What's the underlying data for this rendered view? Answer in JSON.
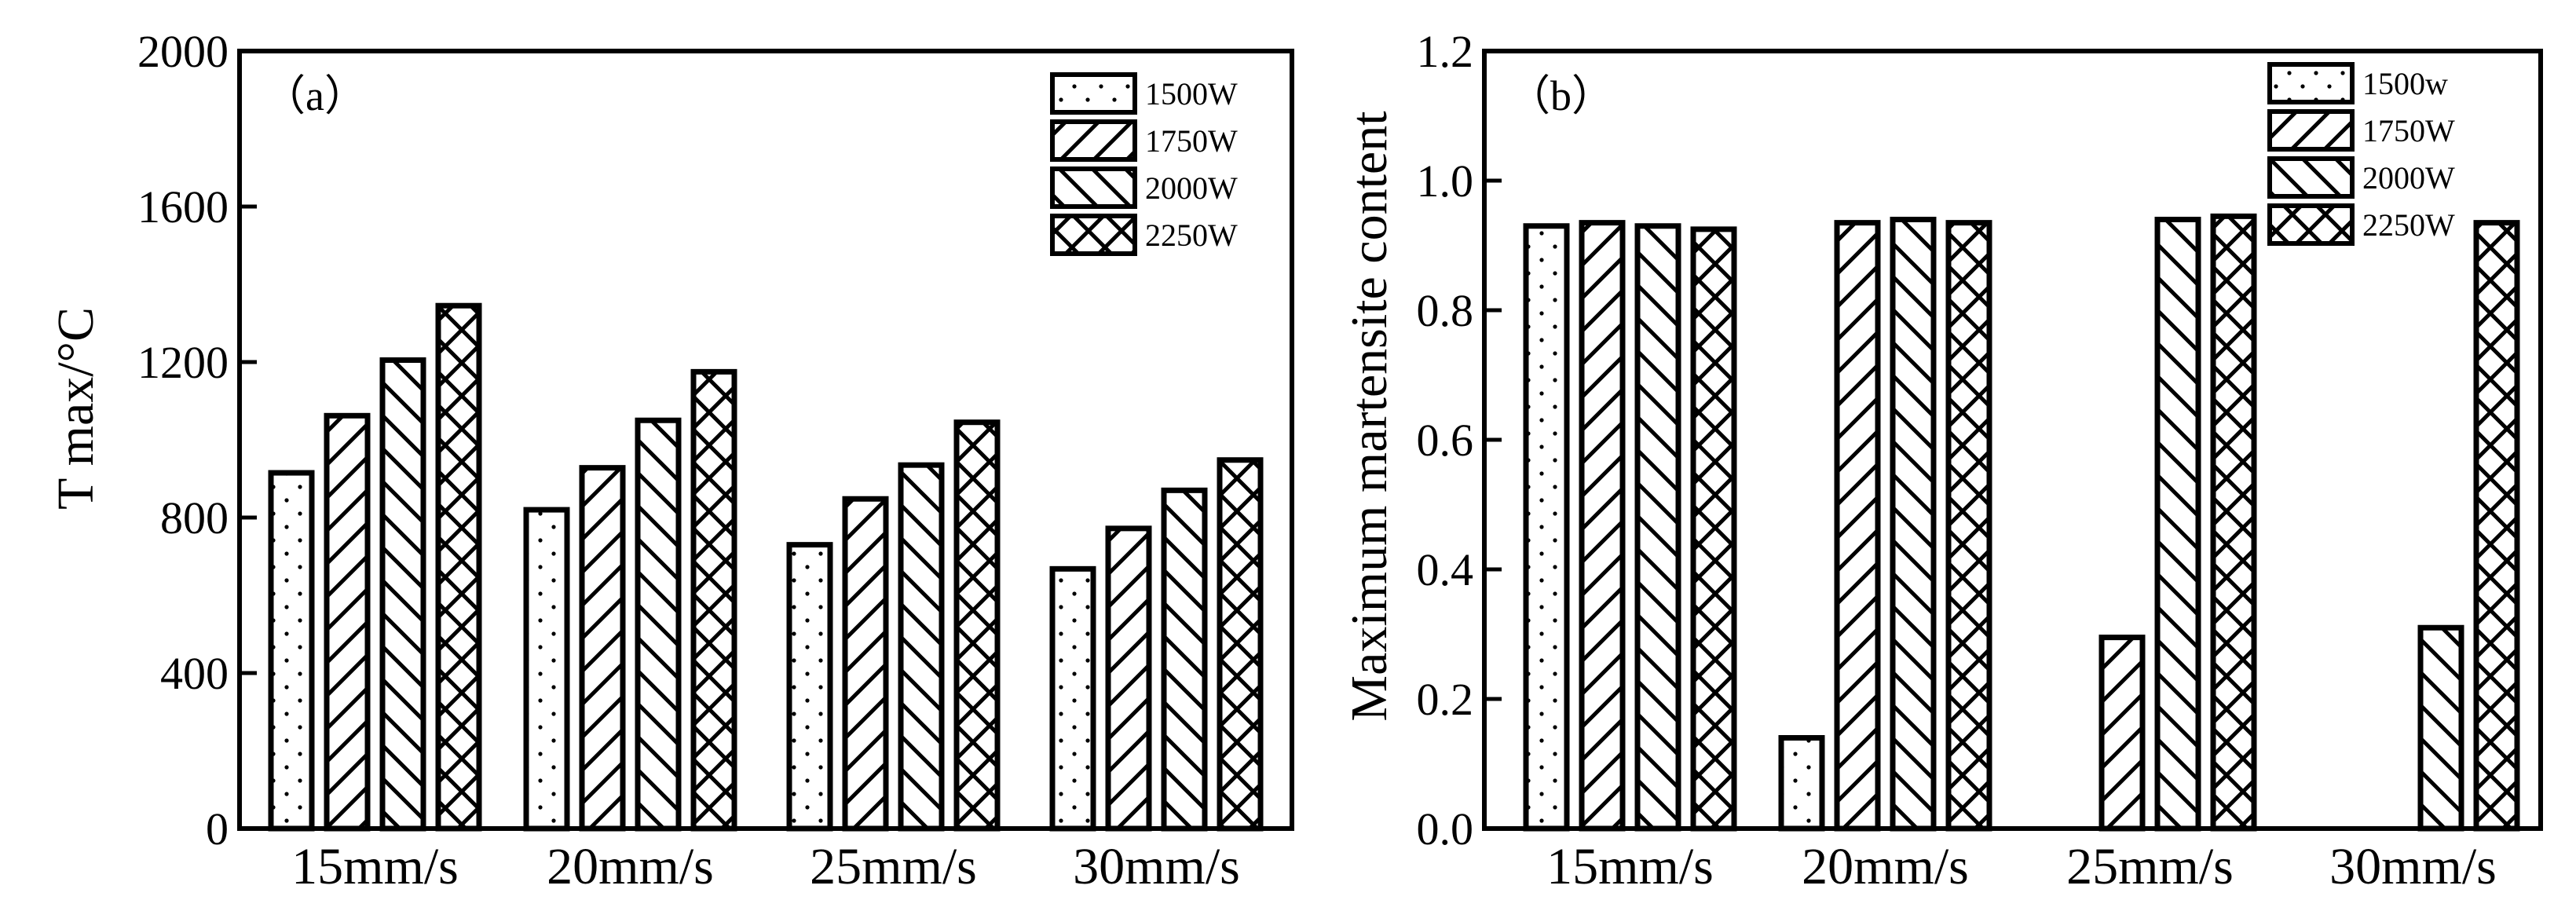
{
  "chart_data": [
    {
      "type": "bar",
      "panel": "（a）",
      "categories": [
        "15mm/s",
        "20mm/s",
        "25mm/s",
        "30mm/s"
      ],
      "series": [
        {
          "name": "1500W",
          "pattern": "dots",
          "values": [
            915,
            820,
            730,
            668
          ]
        },
        {
          "name": "1750W",
          "pattern": "slash",
          "values": [
            1062,
            928,
            848,
            772
          ]
        },
        {
          "name": "2000W",
          "pattern": "backslash",
          "values": [
            1205,
            1050,
            935,
            870
          ]
        },
        {
          "name": "2250W",
          "pattern": "cross",
          "values": [
            1345,
            1175,
            1045,
            948
          ]
        }
      ],
      "xlabel": "",
      "ylabel": "T max/°C",
      "ylim": [
        0,
        2000
      ],
      "yticks": [
        "0",
        "400",
        "800",
        "1200",
        "1600",
        "2000"
      ],
      "legend_position": "top-right",
      "grid": false
    },
    {
      "type": "bar",
      "panel": "（b）",
      "categories": [
        "15mm/s",
        "20mm/s",
        "25mm/s",
        "30mm/s"
      ],
      "series": [
        {
          "name": "1500w",
          "pattern": "dots",
          "values": [
            0.93,
            0.14,
            0,
            0
          ]
        },
        {
          "name": "1750W",
          "pattern": "slash",
          "values": [
            0.935,
            0.935,
            0.295,
            0
          ]
        },
        {
          "name": "2000W",
          "pattern": "backslash",
          "values": [
            0.93,
            0.94,
            0.94,
            0.31
          ]
        },
        {
          "name": "2250W",
          "pattern": "cross",
          "values": [
            0.925,
            0.935,
            0.945,
            0.935
          ]
        }
      ],
      "xlabel": "",
      "ylabel": "Maximum martensite content",
      "ylim": [
        0,
        1.2
      ],
      "yticks": [
        "0.0",
        "0.2",
        "0.4",
        "0.6",
        "0.8",
        "1.0",
        "1.2"
      ],
      "legend_position": "top-right",
      "grid": false
    }
  ]
}
